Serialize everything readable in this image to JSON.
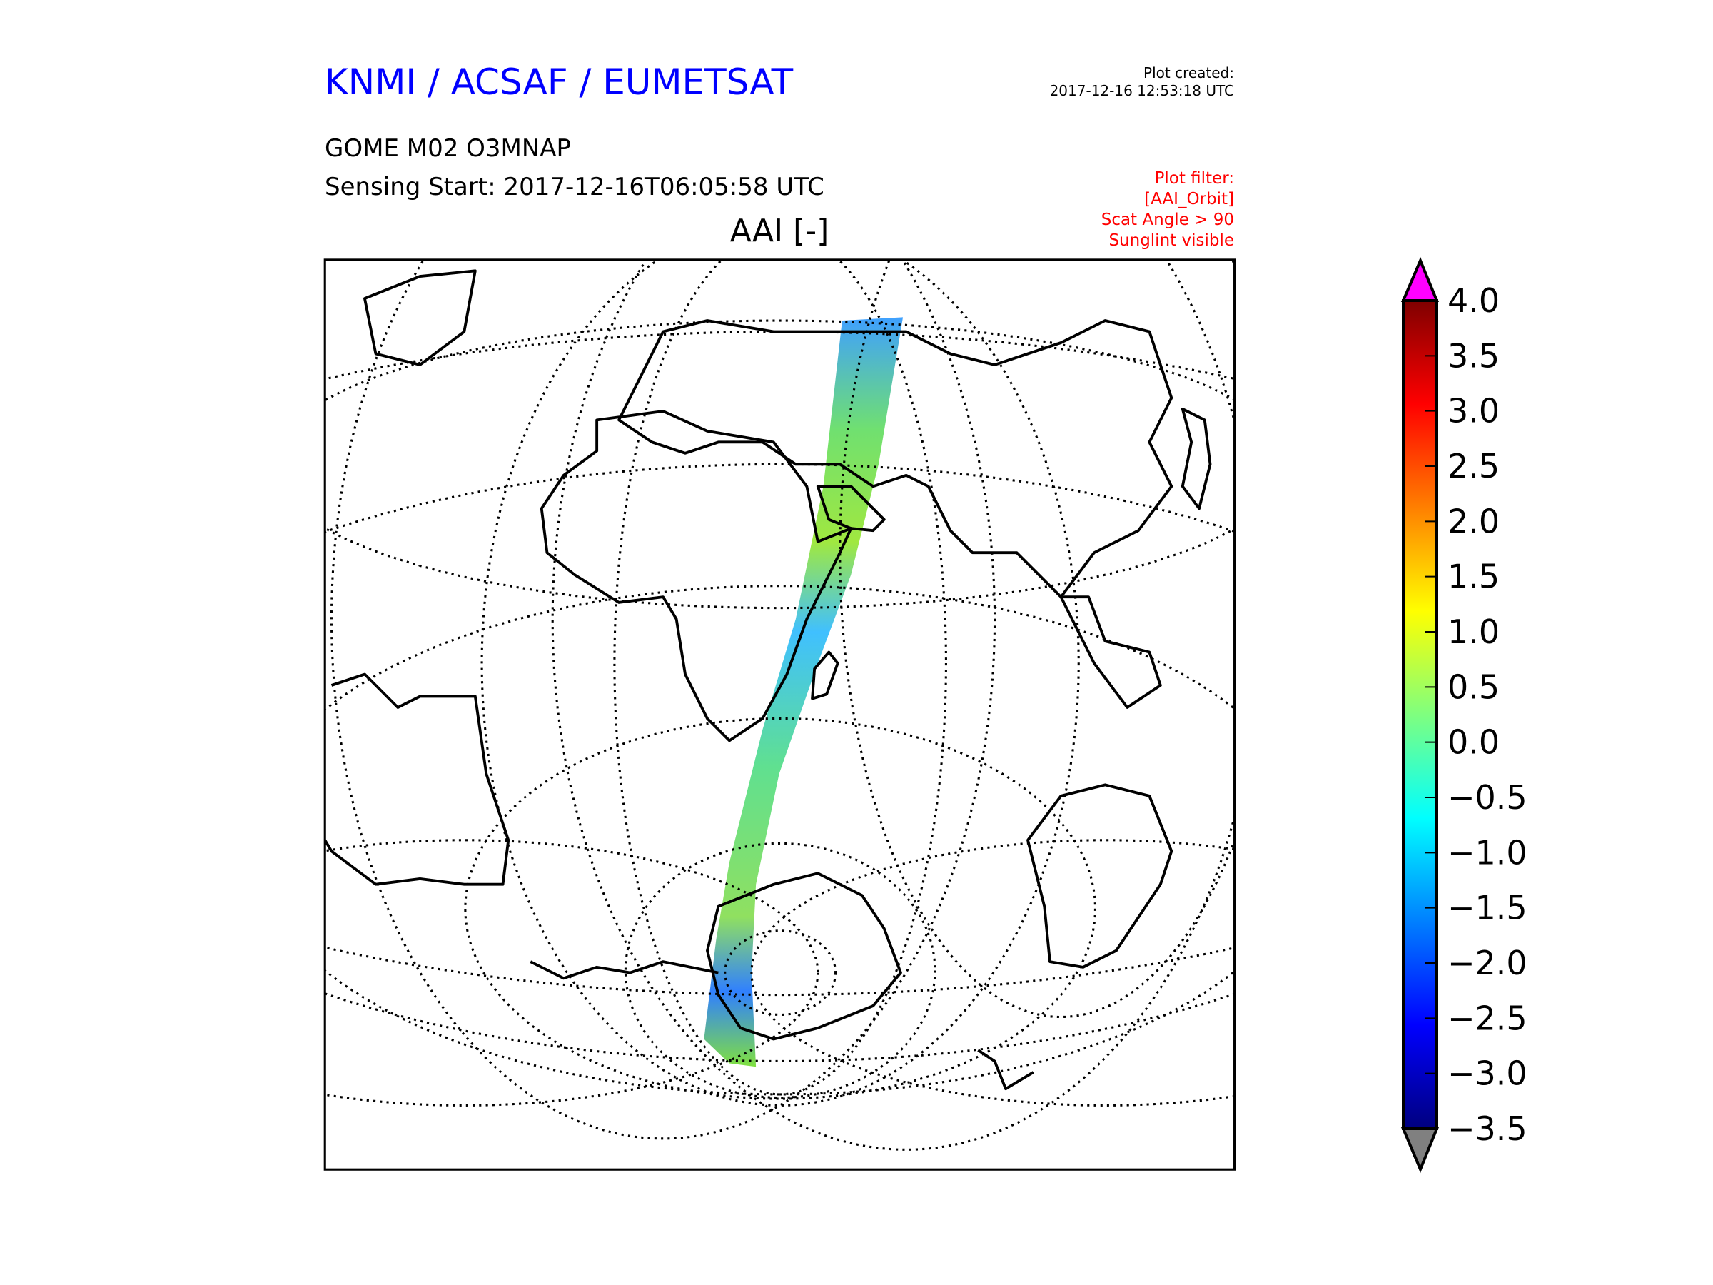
{
  "header": {
    "organization": "KNMI / ACSAF / EUMETSAT",
    "product": "GOME M02 O3MNAP",
    "sensing_start": "Sensing Start: 2017-12-16T06:05:58 UTC",
    "variable_title": "AAI [-]",
    "plot_created_label": "Plot created:",
    "plot_created_time": "2017-12-16 12:53:18 UTC",
    "filter_lines": [
      "Plot filter:",
      "[AAI_Orbit]",
      "Scat Angle > 90",
      "Sunglint visible"
    ]
  },
  "colors": {
    "title": "#0000ff",
    "filter": "#ff0000",
    "over": "#ff00ff",
    "under": "#808080"
  },
  "chart_data": {
    "type": "heatmap",
    "title": "AAI [-]",
    "colormap": "jet",
    "vmin": -3.5,
    "vmax": 4.0,
    "colorbar_ticks": [
      "4.0",
      "3.5",
      "3.0",
      "2.5",
      "2.0",
      "1.5",
      "1.0",
      "0.5",
      "0.0",
      "−0.5",
      "−1.0",
      "−1.5",
      "−2.0",
      "−2.5",
      "−3.0",
      "−3.5"
    ],
    "colorbar_tick_values": [
      4.0,
      3.5,
      3.0,
      2.5,
      2.0,
      1.5,
      1.0,
      0.5,
      0.0,
      -0.5,
      -1.0,
      -1.5,
      -2.0,
      -2.5,
      -3.0,
      -3.5
    ],
    "extend": "both",
    "grid": true
  }
}
